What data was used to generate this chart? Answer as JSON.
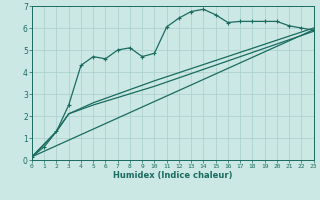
{
  "xlabel": "Humidex (Indice chaleur)",
  "xlim": [
    0,
    23
  ],
  "ylim": [
    0,
    7
  ],
  "xticks": [
    0,
    1,
    2,
    3,
    4,
    5,
    6,
    7,
    8,
    9,
    10,
    11,
    12,
    13,
    14,
    15,
    16,
    17,
    18,
    19,
    20,
    21,
    22,
    23
  ],
  "yticks": [
    0,
    1,
    2,
    3,
    4,
    5,
    6,
    7
  ],
  "background_color": "#cce8e4",
  "grid_color": "#aacfcb",
  "line_color": "#1a6b60",
  "line1_x": [
    0,
    1,
    2,
    3,
    4,
    5,
    6,
    7,
    8,
    9,
    10,
    11,
    12,
    13,
    14,
    15,
    16,
    17,
    18,
    19,
    20,
    21,
    22,
    23
  ],
  "line1_y": [
    0.15,
    0.6,
    1.3,
    2.5,
    4.3,
    4.7,
    4.6,
    5.0,
    5.1,
    4.7,
    4.85,
    6.05,
    6.45,
    6.75,
    6.85,
    6.6,
    6.25,
    6.3,
    6.3,
    6.3,
    6.3,
    6.1,
    6.0,
    5.9
  ],
  "line2_x": [
    0,
    2,
    3,
    5,
    10,
    23
  ],
  "line2_y": [
    0.15,
    1.3,
    2.1,
    2.5,
    3.35,
    5.85
  ],
  "line3_x": [
    0,
    2,
    3,
    5,
    10,
    23
  ],
  "line3_y": [
    0.15,
    1.3,
    2.1,
    2.6,
    3.6,
    6.0
  ],
  "line4_x": [
    0,
    23
  ],
  "line4_y": [
    0.15,
    5.92
  ]
}
